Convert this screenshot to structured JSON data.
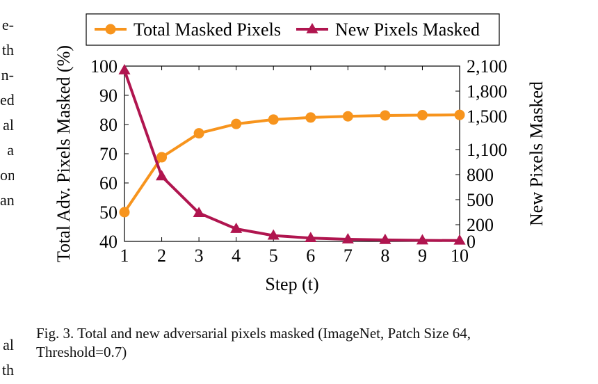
{
  "left_margin_text": {
    "top_fragments": [
      "e-",
      "th",
      "n-",
      "ed",
      "al",
      "a",
      "on",
      "an"
    ],
    "bottom_fragments": [
      "al",
      "th"
    ]
  },
  "caption": "Fig. 3.  Total and new adversarial pixels masked (ImageNet, Patch Size 64, Threshold=0.7)",
  "chart_data": {
    "type": "line",
    "xlabel": "Step (t)",
    "ylabel": "Total Adv. Pixels Masked (%)",
    "y2label": "New Pixels Masked",
    "x": [
      1,
      2,
      3,
      4,
      5,
      6,
      7,
      8,
      9,
      10
    ],
    "xlim": [
      1,
      10
    ],
    "ylim": [
      40,
      100
    ],
    "y2lim": [
      0,
      2100
    ],
    "x_ticks": [
      "1",
      "2",
      "3",
      "4",
      "5",
      "6",
      "7",
      "8",
      "9",
      "10"
    ],
    "y_ticks": [
      "40",
      "50",
      "60",
      "70",
      "80",
      "90",
      "100"
    ],
    "y2_ticks": [
      "0",
      "200",
      "500",
      "800",
      "1,100",
      "1,500",
      "1,800",
      "2,100"
    ],
    "legend_position": "top",
    "series": [
      {
        "name": "Total Masked Pixels",
        "axis": "left",
        "marker": "circle",
        "color": "#f7941d",
        "values": [
          50,
          68.8,
          77,
          80.2,
          81.7,
          82.4,
          82.8,
          83.1,
          83.2,
          83.3
        ]
      },
      {
        "name": "New Pixels Masked",
        "axis": "right",
        "marker": "triangle",
        "color": "#b0154f",
        "values": [
          2050,
          780,
          340,
          150,
          70,
          40,
          25,
          18,
          12,
          10
        ]
      }
    ]
  }
}
